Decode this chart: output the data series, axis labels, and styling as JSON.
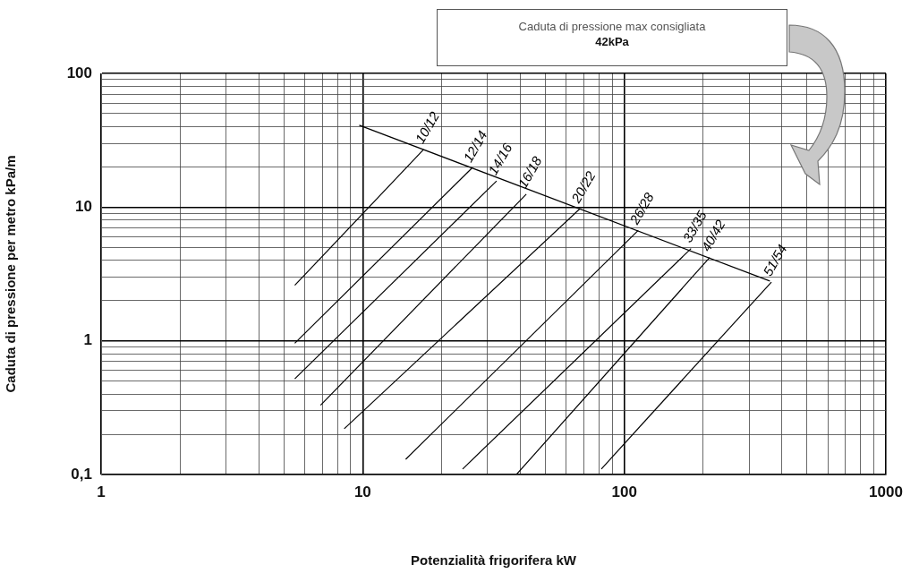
{
  "chart_data": {
    "type": "line",
    "xlabel": "Potenzialità frigorifera kW",
    "ylabel": "Caduta di pressione per metro kPa/m",
    "log": "xy",
    "grid": true,
    "legend": false,
    "marker": "none",
    "line_style": "solid",
    "xlim": [
      1,
      1000
    ],
    "ylim": [
      0.1,
      100
    ],
    "xticks": [
      1,
      {
        "value": 2,
        "label": null
      },
      {
        "value": 3,
        "label": null
      },
      {
        "value": 4,
        "label": null
      },
      {
        "value": 5,
        "label": null
      },
      {
        "value": 6,
        "label": null
      },
      {
        "value": 7,
        "label": null
      },
      {
        "value": 8,
        "label": null
      },
      {
        "value": 9,
        "label": null
      },
      10,
      {
        "value": 20,
        "label": null
      },
      {
        "value": 30,
        "label": null
      },
      {
        "value": 40,
        "label": null
      },
      {
        "value": 50,
        "label": null
      },
      {
        "value": 60,
        "label": null
      },
      {
        "value": 70,
        "label": null
      },
      {
        "value": 80,
        "label": null
      },
      {
        "value": 90,
        "label": null
      },
      100,
      {
        "value": 200,
        "label": null
      },
      {
        "value": 300,
        "label": null
      },
      {
        "value": 400,
        "label": null
      },
      {
        "value": 500,
        "label": null
      },
      {
        "value": 600,
        "label": null
      },
      {
        "value": 700,
        "label": null
      },
      {
        "value": 800,
        "label": null
      },
      {
        "value": 900,
        "label": null
      },
      1000
    ],
    "yticks": [
      {
        "value": 0.1,
        "label": "0,1"
      },
      {
        "value": 0.2,
        "label": null
      },
      {
        "value": 0.3,
        "label": null
      },
      {
        "value": 0.4,
        "label": null
      },
      {
        "value": 0.5,
        "label": null
      },
      {
        "value": 0.6,
        "label": null
      },
      {
        "value": 0.7,
        "label": null
      },
      {
        "value": 0.8,
        "label": null
      },
      {
        "value": 0.9,
        "label": null
      },
      1,
      {
        "value": 2,
        "label": null
      },
      {
        "value": 3,
        "label": null
      },
      {
        "value": 4,
        "label": null
      },
      {
        "value": 5,
        "label": null
      },
      {
        "value": 6,
        "label": null
      },
      {
        "value": 7,
        "label": null
      },
      {
        "value": 8,
        "label": null
      },
      {
        "value": 9,
        "label": null
      },
      10,
      {
        "value": 20,
        "label": null
      },
      {
        "value": 30,
        "label": null
      },
      {
        "value": 40,
        "label": null
      },
      {
        "value": 50,
        "label": null
      },
      {
        "value": 60,
        "label": null
      },
      {
        "value": 70,
        "label": null
      },
      {
        "value": 80,
        "label": null
      },
      {
        "value": 90,
        "label": null
      },
      100
    ],
    "annotations": [
      "Caduta di pressione max consigliata\n42kPa"
    ],
    "series": [
      {
        "color": "#000000",
        "x": [
          9.7,
          360
        ],
        "values": [
          41,
          2.8
        ]
      },
      {
        "name": "10/12",
        "color": "#000000",
        "x": [
          5.5,
          17.1
        ],
        "values": [
          2.6,
          27
        ]
      },
      {
        "name": "12/14",
        "color": "#000000",
        "x": [
          5.5,
          26.1
        ],
        "values": [
          0.96,
          19.5
        ]
      },
      {
        "name": "14/16",
        "color": "#000000",
        "x": [
          5.5,
          32.5
        ],
        "values": [
          0.52,
          15.7
        ]
      },
      {
        "name": "16/18",
        "color": "#000000",
        "x": [
          6.9,
          42.2
        ],
        "values": [
          0.33,
          12.5
        ]
      },
      {
        "name": "20/22",
        "color": "#000000",
        "x": [
          8.5,
          67.6
        ],
        "values": [
          0.22,
          9.7
        ]
      },
      {
        "name": "26/28",
        "color": "#000000",
        "x": [
          14.6,
          113
        ],
        "values": [
          0.13,
          6.7
        ]
      },
      {
        "name": "33/35",
        "color": "#000000",
        "x": [
          24.1,
          180
        ],
        "values": [
          0.11,
          4.9
        ]
      },
      {
        "name": "40/42",
        "color": "#000000",
        "x": [
          38.7,
          212
        ],
        "values": [
          0.1,
          4.2
        ]
      },
      {
        "name": "51/54",
        "color": "#000000",
        "x": [
          81.7,
          365
        ],
        "values": [
          0.11,
          2.75
        ]
      }
    ]
  }
}
